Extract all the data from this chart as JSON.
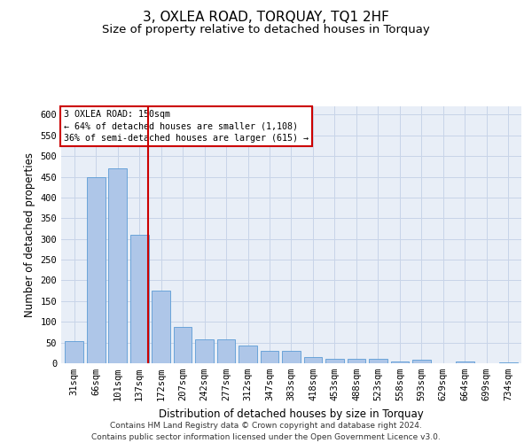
{
  "title": "3, OXLEA ROAD, TORQUAY, TQ1 2HF",
  "subtitle": "Size of property relative to detached houses in Torquay",
  "xlabel": "Distribution of detached houses by size in Torquay",
  "ylabel": "Number of detached properties",
  "categories": [
    "31sqm",
    "66sqm",
    "101sqm",
    "137sqm",
    "172sqm",
    "207sqm",
    "242sqm",
    "277sqm",
    "312sqm",
    "347sqm",
    "383sqm",
    "418sqm",
    "453sqm",
    "488sqm",
    "523sqm",
    "558sqm",
    "593sqm",
    "629sqm",
    "664sqm",
    "699sqm",
    "734sqm"
  ],
  "values": [
    53,
    450,
    470,
    310,
    175,
    88,
    57,
    57,
    43,
    30,
    30,
    15,
    10,
    10,
    10,
    5,
    8,
    0,
    5,
    0,
    3
  ],
  "bar_color": "#aec6e8",
  "bar_edge_color": "#5b9bd5",
  "annotation_line1": "3 OXLEA ROAD: 150sqm",
  "annotation_line2": "← 64% of detached houses are smaller (1,108)",
  "annotation_line3": "36% of semi-detached houses are larger (615) →",
  "annotation_box_color": "#ffffff",
  "annotation_box_edge_color": "#cc0000",
  "vline_color": "#cc0000",
  "footer_line1": "Contains HM Land Registry data © Crown copyright and database right 2024.",
  "footer_line2": "Contains public sector information licensed under the Open Government Licence v3.0.",
  "ylim": [
    0,
    620
  ],
  "yticks": [
    0,
    50,
    100,
    150,
    200,
    250,
    300,
    350,
    400,
    450,
    500,
    550,
    600
  ],
  "bg_color": "#ffffff",
  "grid_color": "#c8d4e8",
  "title_fontsize": 11,
  "subtitle_fontsize": 9.5,
  "axis_label_fontsize": 8.5,
  "tick_fontsize": 7.5,
  "footer_fontsize": 6.5
}
